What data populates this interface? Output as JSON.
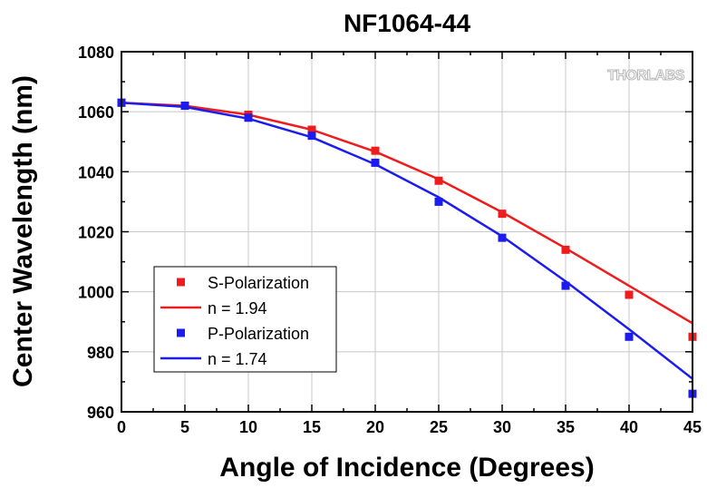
{
  "chart_data": {
    "type": "scatter",
    "title": "NF1064-44",
    "xlabel": "Angle of Incidence (Degrees)",
    "ylabel": "Center Wavelength (nm)",
    "xlim": [
      0,
      45
    ],
    "ylim": [
      960,
      1080
    ],
    "xticks": [
      0,
      5,
      10,
      15,
      20,
      25,
      30,
      35,
      40,
      45
    ],
    "yticks": [
      960,
      980,
      1000,
      1020,
      1040,
      1060,
      1080
    ],
    "grid": true,
    "legend_position": "bottom-left",
    "logo_text": "THORLABS",
    "series": [
      {
        "name": "S-Polarization",
        "kind": "scatter",
        "color": "#ee1c1c",
        "x": [
          0,
          5,
          10,
          15,
          20,
          25,
          30,
          35,
          40,
          45
        ],
        "y": [
          1063,
          1062,
          1059,
          1054,
          1047,
          1037,
          1026,
          1014,
          999,
          985
        ]
      },
      {
        "name": "n = 1.94",
        "kind": "line",
        "color": "#ee1c1c",
        "x": [
          0,
          5,
          10,
          15,
          20,
          25,
          30,
          35,
          40,
          45
        ],
        "y": [
          1063,
          1062,
          1059,
          1054,
          1046.7,
          1037.5,
          1026.5,
          1014.5,
          1002,
          989.5
        ]
      },
      {
        "name": "P-Polarization",
        "kind": "scatter",
        "color": "#1c1cee",
        "x": [
          0,
          5,
          10,
          15,
          20,
          25,
          30,
          35,
          40,
          45
        ],
        "y": [
          1063,
          1062,
          1058,
          1052,
          1043,
          1030,
          1018,
          1002,
          985,
          966
        ]
      },
      {
        "name": "n = 1.74",
        "kind": "line",
        "color": "#1c1cee",
        "x": [
          0,
          5,
          10,
          15,
          20,
          25,
          30,
          35,
          40,
          45
        ],
        "y": [
          1063,
          1061.6,
          1057.7,
          1051.5,
          1042.5,
          1031.5,
          1018.5,
          1003.5,
          987.5,
          971
        ]
      }
    ]
  }
}
